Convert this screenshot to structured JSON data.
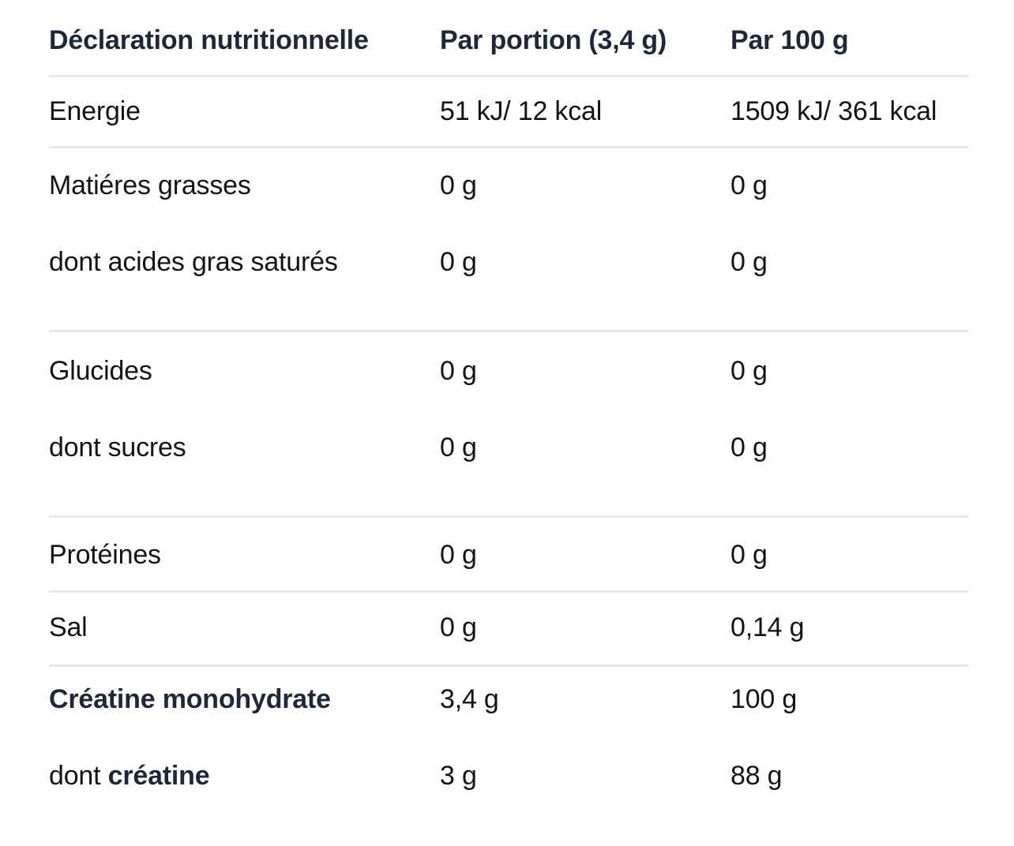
{
  "colors": {
    "background": "#ffffff",
    "heading_text": "#1e2839",
    "body_text": "#131417",
    "divider": "#e7e7e9"
  },
  "chart_data": {
    "type": "table",
    "title": "Déclaration nutritionnelle",
    "columns": [
      "Déclaration nutritionnelle",
      "Par portion (3,4 g)",
      "Par 100 g"
    ],
    "rows": [
      {
        "label": "Energie",
        "per_portion": "51 kJ/ 12 kcal",
        "per_100g": "1509 kJ/ 361 kcal"
      },
      {
        "label": "Matiéres grasses",
        "per_portion": "0 g",
        "per_100g": "0 g"
      },
      {
        "label": "dont acides gras saturés",
        "per_portion": "0 g",
        "per_100g": "0 g"
      },
      {
        "label": "Glucides",
        "per_portion": "0 g",
        "per_100g": "0 g"
      },
      {
        "label": "dont sucres",
        "per_portion": "0 g",
        "per_100g": "0 g"
      },
      {
        "label": "Protéines",
        "per_portion": "0 g",
        "per_100g": "0 g"
      },
      {
        "label": "Sal",
        "per_portion": "0 g",
        "per_100g": "0,14 g"
      },
      {
        "label": "Créatine monohydrate",
        "per_portion": "3,4 g",
        "per_100g": "100 g"
      },
      {
        "label": "dont créatine",
        "label_prefix": "dont ",
        "label_bold": "créatine",
        "per_portion": "3 g",
        "per_100g": "88 g"
      }
    ]
  }
}
